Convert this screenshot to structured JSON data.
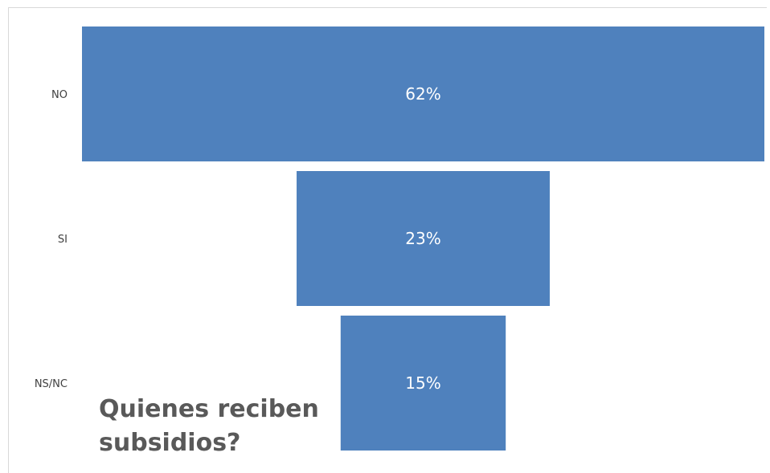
{
  "chart_data": {
    "type": "bar",
    "orientation": "horizontal-funnel",
    "categories": [
      "NO",
      "SI",
      "NS/NC"
    ],
    "values": [
      62,
      23,
      15
    ],
    "value_labels": [
      "62%",
      "23%",
      "15%"
    ],
    "unit": "%",
    "title": "Quienes reciben subsidios?",
    "xlabel": "",
    "ylabel": "",
    "grid": false,
    "legend": "none",
    "colors": {
      "bar": "#4f81bd",
      "bar_label": "#ffffff",
      "category_label": "#404040",
      "title": "#595959"
    }
  }
}
